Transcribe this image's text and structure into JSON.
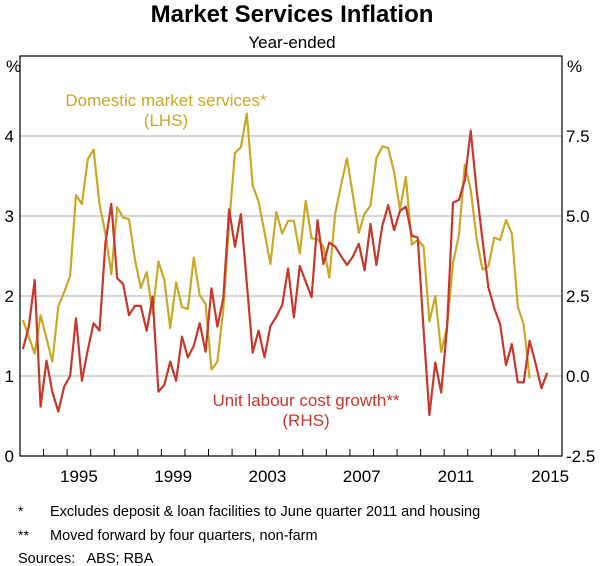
{
  "chart_data": {
    "type": "line",
    "title": "Market Services Inflation",
    "subtitle": "Year-ended",
    "left_axis": {
      "unit": "%",
      "ylim": [
        0,
        5
      ],
      "ticks": [
        0,
        1,
        2,
        3,
        4
      ],
      "tick_labels": [
        "0",
        "1",
        "2",
        "3",
        "4"
      ]
    },
    "right_axis": {
      "unit": "%",
      "ylim": [
        -2.5,
        10
      ],
      "ticks": [
        -2.5,
        0,
        2.5,
        5,
        7.5
      ],
      "tick_labels": [
        "-2.5",
        "0.0",
        "2.5",
        "5.0",
        "7.5"
      ]
    },
    "xlim": [
      1993,
      2016
    ],
    "x_tick_labels": [
      "1995",
      "1999",
      "2003",
      "2007",
      "2011",
      "2015"
    ],
    "x_tick_label_years": [
      1995,
      1999,
      2003,
      2007,
      2011,
      2015
    ],
    "grid": true,
    "series": [
      {
        "name": "Domestic market services*",
        "axis_label": "(LHS)",
        "axis": "left",
        "color": "#c9a927",
        "x_start": 1993.125,
        "x_step": 0.25,
        "values": [
          1.7,
          1.49,
          1.28,
          1.76,
          1.47,
          1.18,
          1.87,
          2.05,
          2.25,
          3.26,
          3.15,
          3.71,
          3.83,
          3.15,
          2.78,
          2.27,
          3.11,
          2.98,
          2.96,
          2.46,
          2.1,
          2.3,
          1.78,
          2.43,
          2.2,
          1.6,
          2.17,
          1.86,
          1.84,
          2.48,
          2.01,
          1.9,
          1.08,
          1.18,
          1.83,
          2.91,
          3.79,
          3.86,
          4.28,
          3.38,
          3.18,
          2.8,
          2.4,
          3.05,
          2.78,
          2.94,
          2.94,
          2.53,
          3.19,
          2.72,
          2.71,
          2.62,
          2.23,
          3.03,
          3.39,
          3.72,
          3.26,
          2.79,
          3.03,
          3.13,
          3.72,
          3.87,
          3.85,
          3.55,
          3.08,
          3.49,
          2.64,
          2.7,
          2.62,
          1.68,
          2.0,
          1.3,
          1.62,
          2.41,
          2.76,
          3.64,
          3.33,
          2.72,
          2.33,
          2.37,
          2.73,
          2.7,
          2.95,
          2.78,
          1.87,
          1.64,
          0.97
        ]
      },
      {
        "name": "Unit labour cost growth**",
        "axis_label": "(RHS)",
        "axis": "right",
        "color": "#c8372d",
        "x_start": 1993.125,
        "x_step": 0.25,
        "values": [
          0.84,
          1.54,
          3.0,
          -0.96,
          0.48,
          -0.5,
          -1.11,
          -0.33,
          0.0,
          1.8,
          -0.15,
          0.82,
          1.65,
          1.42,
          4.15,
          5.38,
          3.05,
          2.88,
          1.9,
          2.19,
          2.19,
          1.41,
          2.48,
          -0.49,
          -0.28,
          0.45,
          -0.15,
          1.23,
          0.58,
          0.94,
          1.65,
          0.76,
          2.74,
          1.54,
          2.43,
          5.21,
          4.04,
          5.06,
          2.9,
          0.73,
          1.42,
          0.58,
          1.56,
          1.85,
          2.22,
          3.36,
          1.83,
          3.44,
          2.95,
          2.46,
          4.87,
          3.5,
          4.17,
          4.04,
          3.75,
          3.47,
          3.73,
          4.13,
          3.3,
          4.75,
          3.47,
          4.69,
          5.34,
          4.56,
          5.16,
          5.29,
          4.38,
          4.33,
          1.44,
          -1.22,
          0.42,
          -0.52,
          1.54,
          5.42,
          5.5,
          6.12,
          7.67,
          5.81,
          4.25,
          2.77,
          2.12,
          1.62,
          0.34,
          1.0,
          -0.2,
          -0.2,
          1.1,
          0.4,
          -0.38,
          0.1
        ]
      }
    ],
    "footnotes": [
      {
        "mark": "*",
        "text": "Excludes deposit & loan facilities to June quarter 2011 and housing"
      },
      {
        "mark": "**",
        "text": "Moved forward by four quarters, non-farm"
      }
    ],
    "sources": "Sources:   ABS; RBA"
  }
}
